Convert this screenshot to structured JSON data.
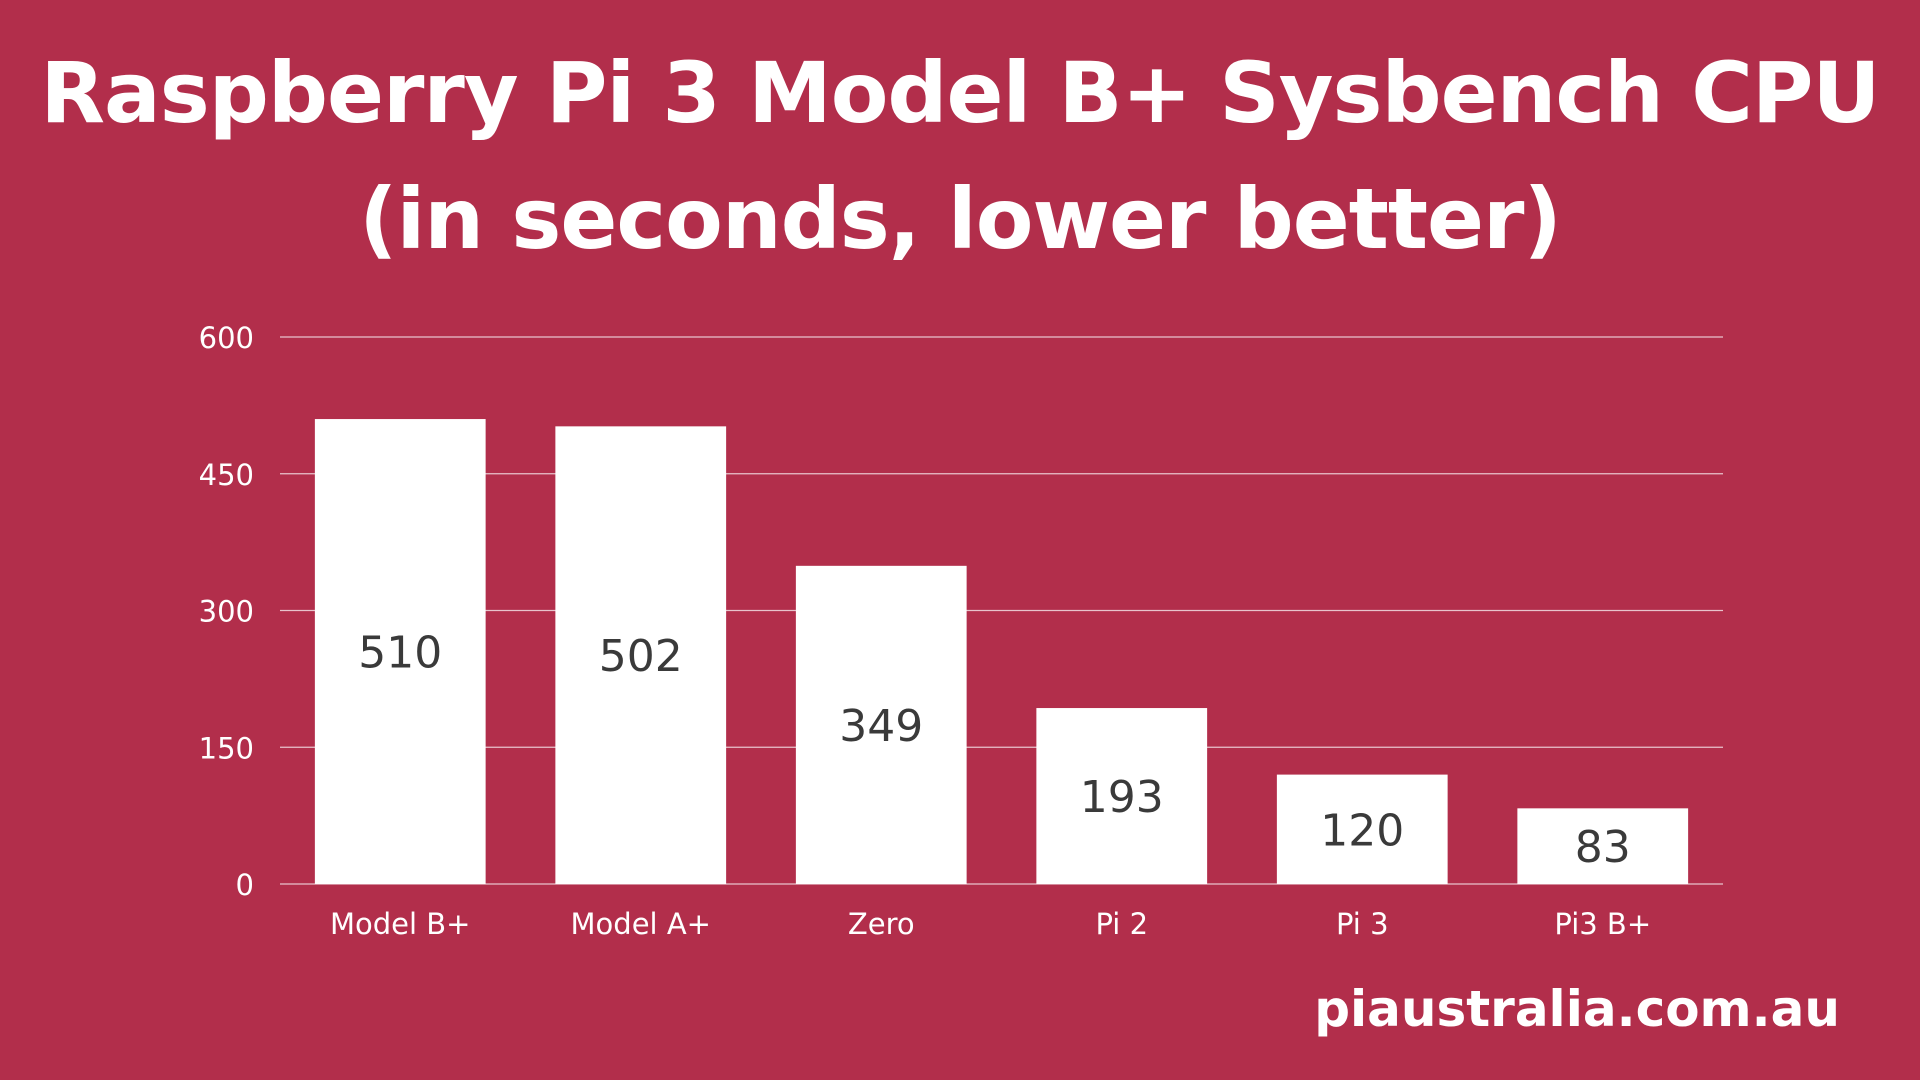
{
  "title_line1": "Raspberry Pi 3 Model B+ Sysbench CPU",
  "title_line2": "(in seconds, lower better)",
  "watermark": "piaustralia.com.au",
  "colors": {
    "background": "#b22e4b",
    "bar": "#ffffff",
    "grid": "#e8c3cc",
    "bar_label": "#3a3a3a",
    "tick_text": "#ffffff"
  },
  "chart_data": {
    "type": "bar",
    "categories": [
      "Model B+",
      "Model A+",
      "Zero",
      "Pi 2",
      "Pi 3",
      "Pi3 B+"
    ],
    "values": [
      510,
      502,
      349,
      193,
      120,
      83
    ],
    "data_labels": [
      "510",
      "502",
      "349",
      "193",
      "120",
      "83"
    ],
    "y_ticks": [
      0,
      150,
      300,
      450,
      600
    ],
    "ylim": [
      0,
      600
    ],
    "grid": true,
    "legend": "none",
    "xlabel": "",
    "ylabel": ""
  }
}
